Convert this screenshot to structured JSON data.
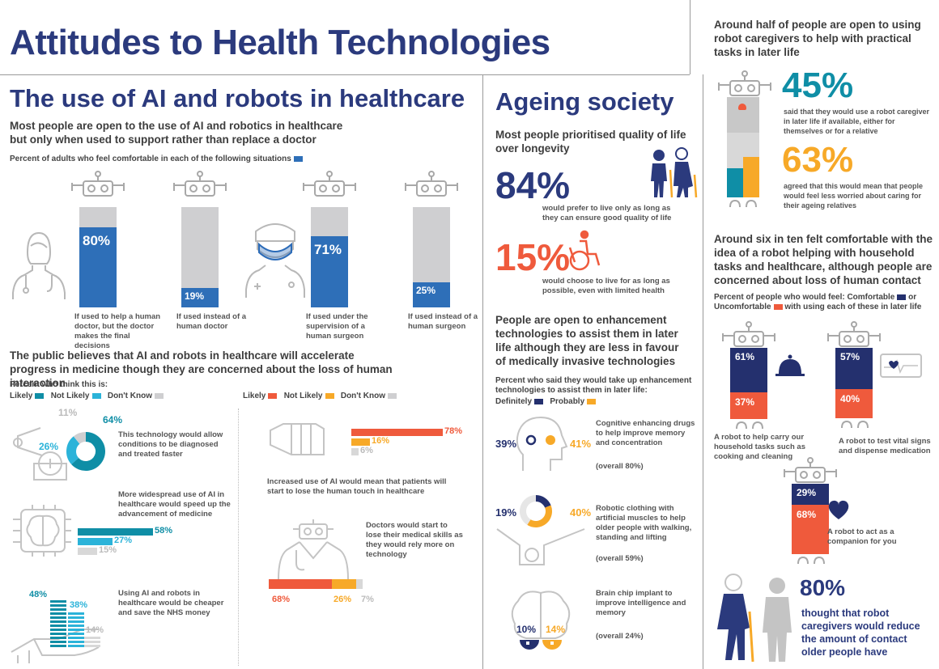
{
  "colors": {
    "navy": "#2b3a7d",
    "blue": "#2e6fb8",
    "teal": "#0f8ea6",
    "cyan": "#2bb3d9",
    "gray": "#cfcfd1",
    "red": "#ef5a3c",
    "orange": "#f7a928",
    "darknavy": "#24306e"
  },
  "title": "Attitudes to Health Technologies",
  "ai": {
    "heading": "The use of AI and robots in healthcare",
    "intro": "Most people are open to the use of AI and robotics in healthcare but only when used to support rather than replace a doctor",
    "legend": "Percent of adults who feel comfortable in each of the following situations",
    "bars": [
      {
        "value": 80,
        "label": "80%",
        "caption": "If used to help a human doctor, but the doctor makes the final decisions"
      },
      {
        "value": 19,
        "label": "19%",
        "caption": "If used instead of a human doctor"
      },
      {
        "value": 71,
        "label": "71%",
        "caption": "If used under the supervision of a human surgeon"
      },
      {
        "value": 25,
        "label": "25%",
        "caption": "If used instead of a human surgeon"
      }
    ]
  },
  "progress": {
    "heading": "The public believes that AI and robots in healthcare will accelerate progress in medicine though they are concerned about the loss of human interaction",
    "legend_title": "Percent who think this is:",
    "legend_left": {
      "likely": "Likely",
      "not_likely": "Not Likely",
      "dont_know": "Don't Know"
    },
    "legend_right": {
      "likely": "Likely",
      "not_likely": "Not Likely",
      "dont_know": "Don't Know"
    },
    "items": [
      {
        "text": "This technology would allow conditions to be diagnosed and treated faster",
        "likely": 64,
        "not_likely": 26,
        "dont_know": 11,
        "l": "64%",
        "n": "26%",
        "d": "11%"
      },
      {
        "text": "More widespread use of AI in healthcare would speed up the advancement of medicine",
        "likely": 58,
        "not_likely": 27,
        "dont_know": 15,
        "l": "58%",
        "n": "27%",
        "d": "15%"
      },
      {
        "text": "Using AI and robots in healthcare would be cheaper and save the NHS money",
        "likely": 48,
        "not_likely": 38,
        "dont_know": 14,
        "l": "48%",
        "n": "38%",
        "d": "14%"
      },
      {
        "text": "Increased use of AI would mean that patients will start to lose the human touch in healthcare",
        "likely": 78,
        "not_likely": 16,
        "dont_know": 6,
        "l": "78%",
        "n": "16%",
        "d": "6%"
      },
      {
        "text": "Doctors would start to lose their medical skills as they would rely more on technology",
        "likely": 68,
        "not_likely": 26,
        "dont_know": 7,
        "l": "68%",
        "n": "26%",
        "d": "7%"
      }
    ]
  },
  "ageing": {
    "heading": "Ageing society",
    "intro": "Most people prioritised quality of life over longevity",
    "stat1": {
      "value": "84%",
      "text": "would prefer to live only as long as they can ensure good quality of life"
    },
    "stat2": {
      "value": "15%",
      "text": "would choose to live for as long as possible, even with limited health"
    },
    "enh_heading": "People are open to enhancement technologies to assist them in later life although they are less in favour of medically invasive technologies",
    "enh_legend": "Percent who said they would take up enhancement technologies to assist them in later life:",
    "enh_def": "Definitely",
    "enh_prob": "Probably",
    "items": [
      {
        "def": 39,
        "prob": 41,
        "def_label": "39%",
        "prob_label": "41%",
        "text": "Cognitive enhancing drugs to help improve memory and concentration",
        "overall": "(overall 80%)"
      },
      {
        "def": 19,
        "prob": 40,
        "def_label": "19%",
        "prob_label": "40%",
        "text": "Robotic clothing with artificial muscles to help older people with walking, standing and lifting",
        "overall": "(overall 59%)"
      },
      {
        "def": 10,
        "prob": 14,
        "def_label": "10%",
        "prob_label": "14%",
        "text": "Brain chip implant to improve intelligence and memory",
        "overall": "(overall 24%)"
      }
    ]
  },
  "care": {
    "heading": "Around half of people are open to using robot caregivers to help with practical tasks in later life",
    "stat45": {
      "value": "45%",
      "text": "said that they would use a robot caregiver in later life if available, either for themselves or for a relative"
    },
    "stat63": {
      "value": "63%",
      "text": "agreed that this would mean that people would feel less worried about caring for their ageing relatives"
    },
    "house_heading": "Around six in ten felt comfortable with the idea of a robot helping with household tasks and healthcare, although people are concerned about loss of human contact",
    "house_legend1": "Percent of people who would feel: Comfortable",
    "house_or": "or",
    "house_legend2": "Uncomfortable",
    "house_legend3": "with using each of these in later life",
    "robots": [
      {
        "comfortable": 61,
        "uncomfortable": 37,
        "c_label": "61%",
        "u_label": "37%",
        "text": "A robot to help carry our household tasks such as cooking and cleaning"
      },
      {
        "comfortable": 57,
        "uncomfortable": 40,
        "c_label": "57%",
        "u_label": "40%",
        "text": "A robot to test vital signs and dispense medication"
      },
      {
        "comfortable": 29,
        "uncomfortable": 68,
        "c_label": "29%",
        "u_label": "68%",
        "text": "A robot to act as a companion for you"
      }
    ],
    "stat80": {
      "value": "80%",
      "text": "thought that robot caregivers would reduce the amount of contact older people have"
    }
  }
}
